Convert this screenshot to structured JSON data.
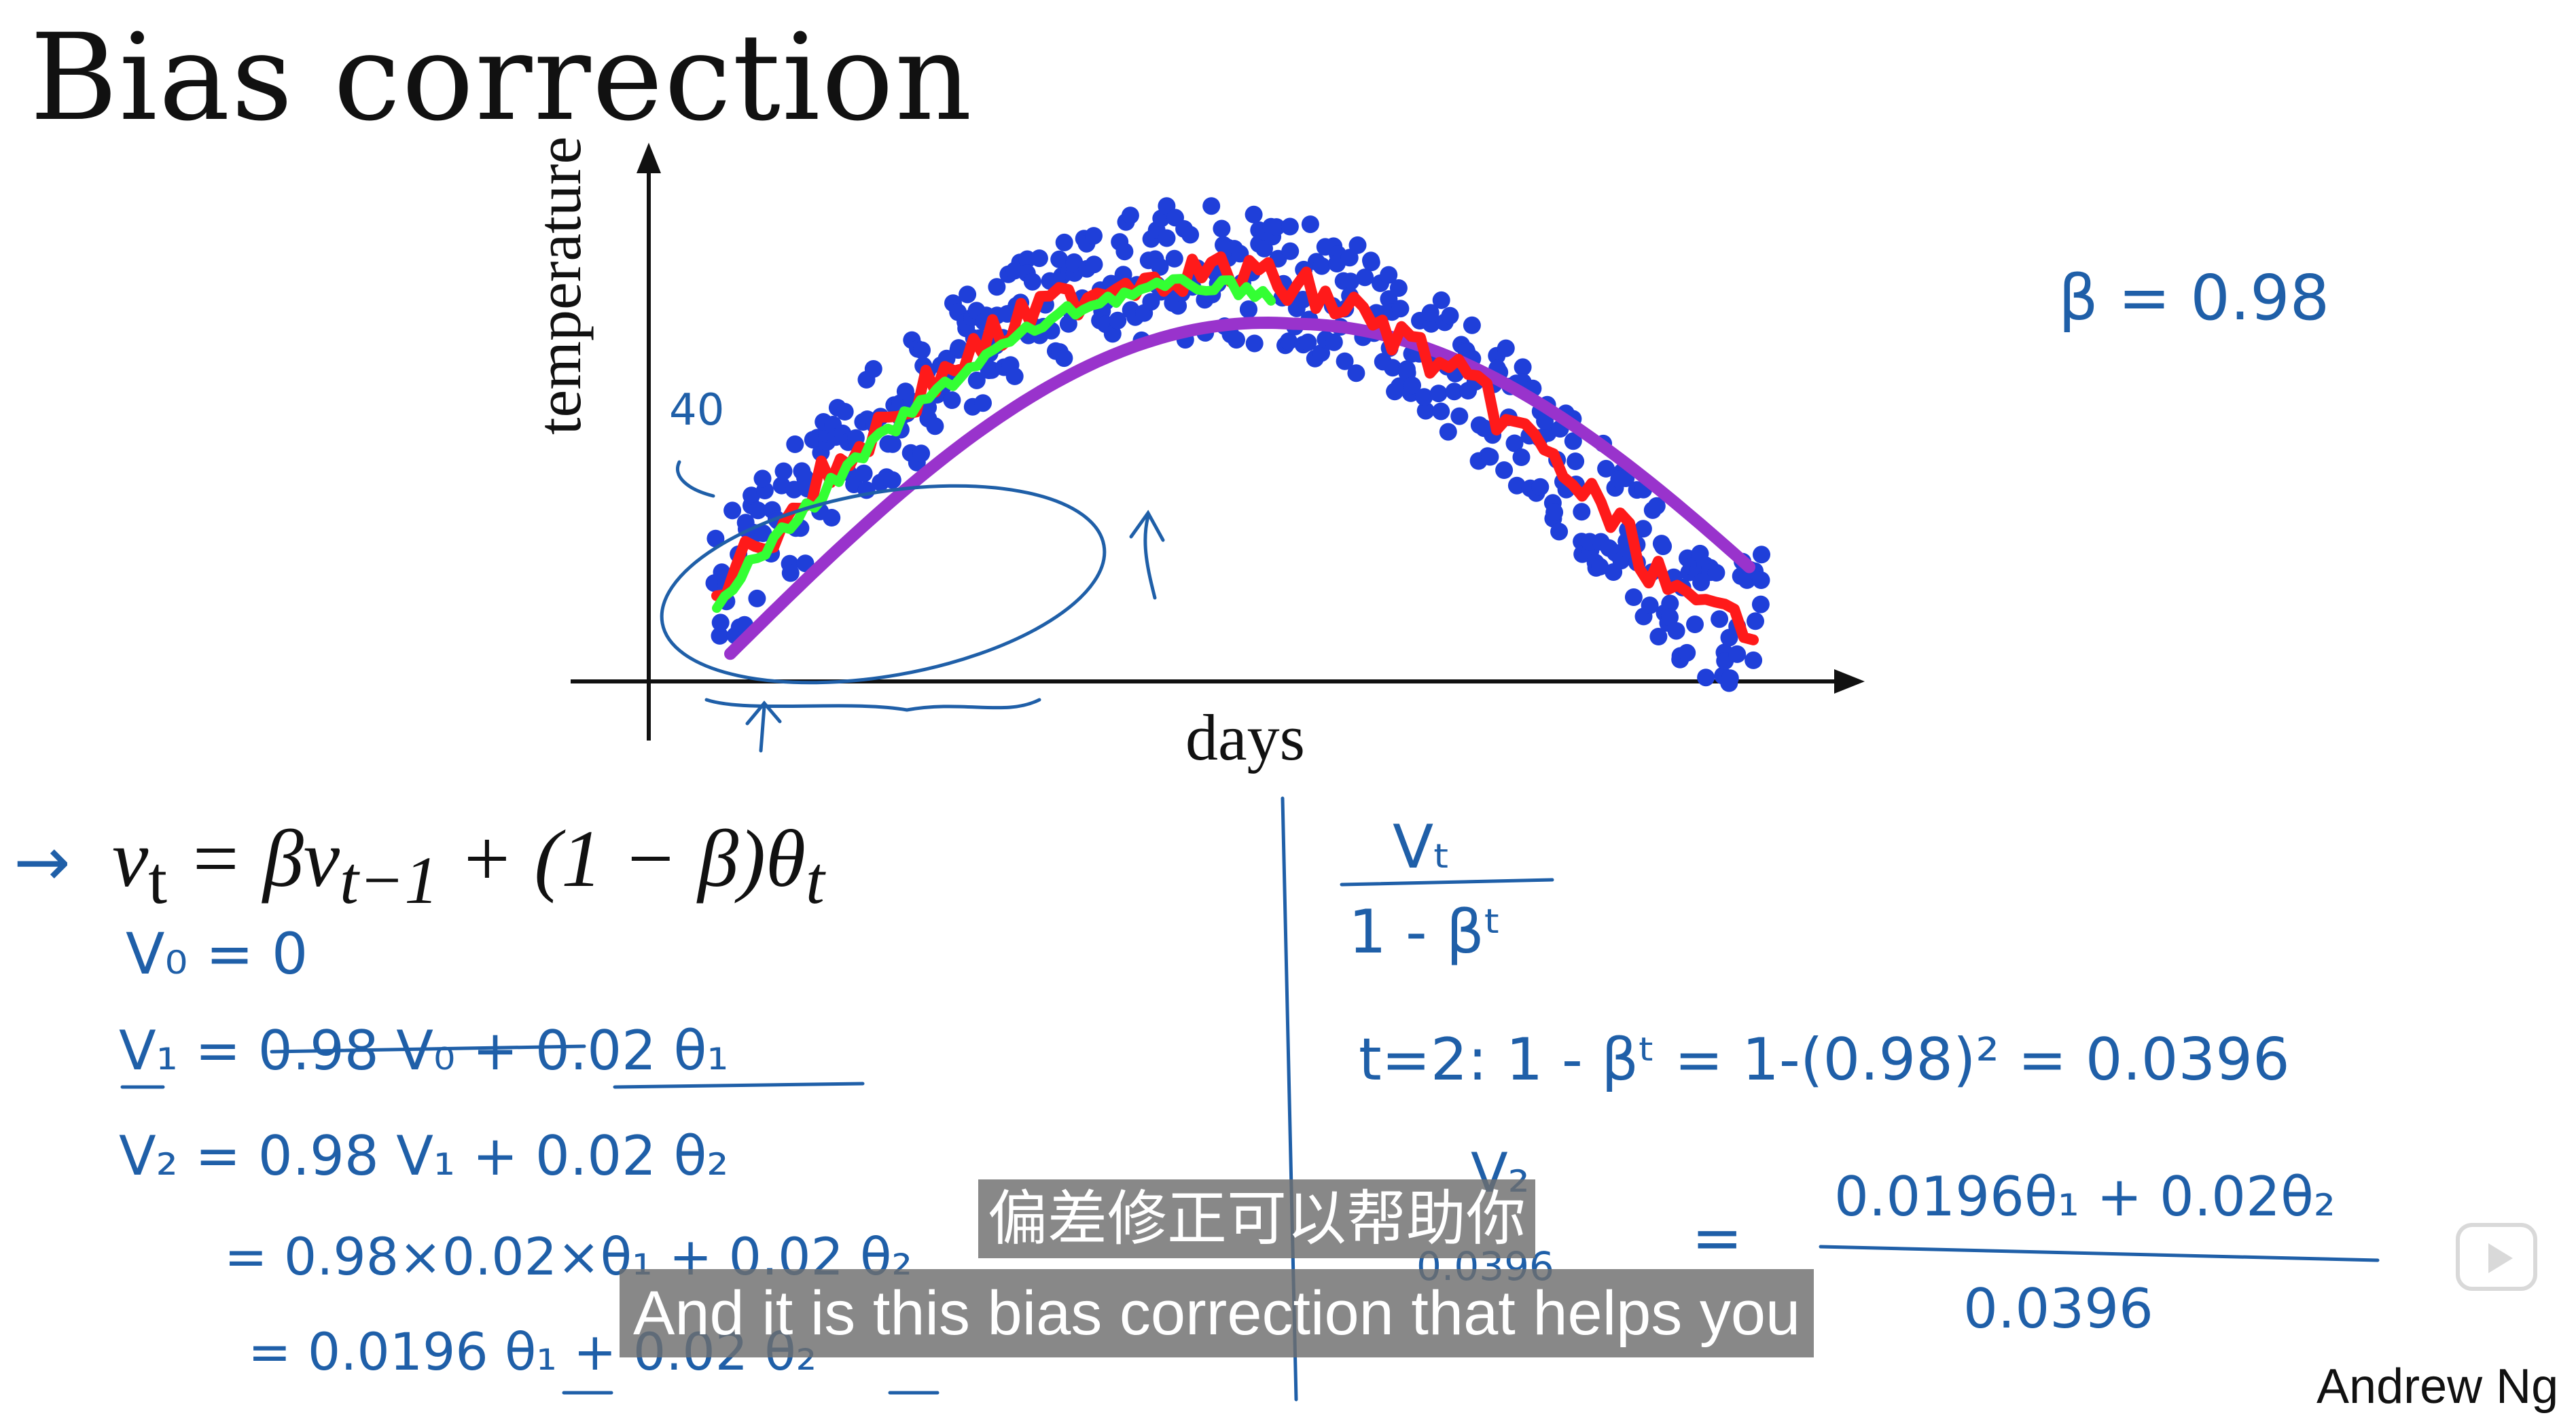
{
  "slide": {
    "title": "Bias correction",
    "author": "Andrew Ng"
  },
  "chart_data": {
    "type": "scatter",
    "xlabel": "days",
    "ylabel": "temperature",
    "colors": {
      "points": "#1f3fd9",
      "ema_red": "#ff1a1a",
      "ema_green": "#33ff33",
      "ema_purple": "#9933cc"
    }
  },
  "equation": {
    "lhs": "v",
    "lhs_sub": "t",
    "eq": " = βv",
    "sub2": "t−1",
    "rest": " + (1 − β)θ",
    "sub3": "t"
  },
  "handwritten": {
    "beta": "β = 0.98",
    "label_40": "40",
    "v0": "V₀ = 0",
    "v1": "V₁ = 0.98 V₀ + 0.02 θ₁",
    "v2": "V₂ = 0.98 V₁ + 0.02 θ₂",
    "v2_line2": "= 0.98×0.02×θ₁ + 0.02 θ₂",
    "v2_line3": "= 0.0196 θ₁ + 0.02 θ₂",
    "frac_num": "Vₜ",
    "frac_den": "1 - βᵗ",
    "t2": "t=2:  1 - βᵗ  =  1-(0.98)²  = 0.0396",
    "v2_over": "V₂",
    "v2_den": "0.0396",
    "eq_sign": "=",
    "rhs_num": "0.0196θ₁ + 0.02θ₂",
    "rhs_den": "0.0396"
  },
  "subtitles": {
    "chinese": "偏差修正可以帮助你",
    "english": "And it is this bias correction that helps you"
  }
}
